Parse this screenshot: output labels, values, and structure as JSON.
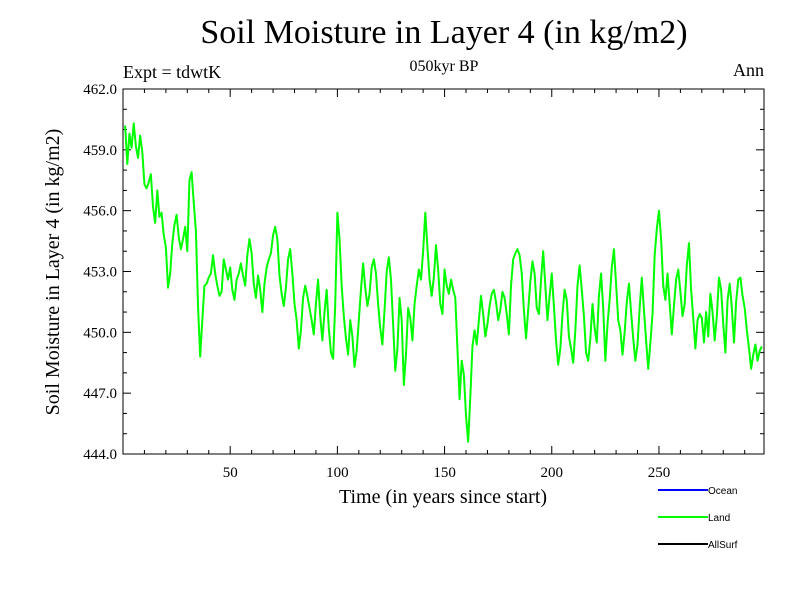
{
  "chart_data": {
    "type": "line",
    "title": "Soil Moisture in Layer 4 (in kg/m2)",
    "subtitle": "050kyr BP",
    "experiment": "Expt = tdwtK",
    "season": "Ann",
    "xlabel": "Time (in years since start)",
    "ylabel": "Soil Moisture in Layer 4 (in kg/m2)",
    "xlim": [
      0,
      299
    ],
    "ylim": [
      444.0,
      462.0
    ],
    "x_ticks": [
      50,
      100,
      150,
      200,
      250
    ],
    "y_ticks": [
      "444.0",
      "447.0",
      "450.0",
      "453.0",
      "456.0",
      "459.0",
      "462.0"
    ],
    "legend": [
      "Ocean",
      "Land",
      "AllSurf"
    ],
    "series": [
      {
        "name": "Land",
        "color": "#00ff00",
        "x_start": 1,
        "x_step": 1,
        "values": [
          460.2,
          458.3,
          459.8,
          459.1,
          460.3,
          459.2,
          458.6,
          459.7,
          458.9,
          457.3,
          457.1,
          457.4,
          457.8,
          456.2,
          455.4,
          457.0,
          455.7,
          455.9,
          454.8,
          454.2,
          452.2,
          452.9,
          454.4,
          455.3,
          455.8,
          454.7,
          454.1,
          454.6,
          455.2,
          454.0,
          457.5,
          457.9,
          456.4,
          455.0,
          451.3,
          448.8,
          450.6,
          452.3,
          452.4,
          452.7,
          452.9,
          453.8,
          452.9,
          452.3,
          451.8,
          452.0,
          453.6,
          453.1,
          452.6,
          453.2,
          452.1,
          451.6,
          452.6,
          452.9,
          453.4,
          452.8,
          452.3,
          453.8,
          454.6,
          453.9,
          452.4,
          451.7,
          452.8,
          452.1,
          451.0,
          452.4,
          453.2,
          453.6,
          453.9,
          454.8,
          455.2,
          454.6,
          452.8,
          451.9,
          451.3,
          452.2,
          453.6,
          454.1,
          452.9,
          451.4,
          450.6,
          449.2,
          450.1,
          451.7,
          452.3,
          451.8,
          451.2,
          450.6,
          449.9,
          451.4,
          452.6,
          450.8,
          449.6,
          451.0,
          452.1,
          450.2,
          449.0,
          448.7,
          451.4,
          455.9,
          454.6,
          452.3,
          450.8,
          449.7,
          448.9,
          450.6,
          449.8,
          448.3,
          449.1,
          450.6,
          452.1,
          453.4,
          452.2,
          451.3,
          451.9,
          453.2,
          453.6,
          452.9,
          451.4,
          450.2,
          449.4,
          451.1,
          453.0,
          453.7,
          452.6,
          450.4,
          448.1,
          449.2,
          451.7,
          450.6,
          447.4,
          448.9,
          451.2,
          450.7,
          449.6,
          451.4,
          452.3,
          453.1,
          452.6,
          454.0,
          455.9,
          454.2,
          452.6,
          451.8,
          452.7,
          454.3,
          453.1,
          451.4,
          450.9,
          453.1,
          452.3,
          451.9,
          452.6,
          452.1,
          451.7,
          449.2,
          446.7,
          448.6,
          447.9,
          445.9,
          444.6,
          446.8,
          449.3,
          450.1,
          449.4,
          450.6,
          451.8,
          450.9,
          449.8,
          450.4,
          451.3,
          451.9,
          452.1,
          451.5,
          450.6,
          451.1,
          452.0,
          451.7,
          450.9,
          449.9,
          452.3,
          453.6,
          453.9,
          454.1,
          453.8,
          452.9,
          451.1,
          449.7,
          451.1,
          452.5,
          453.5,
          452.9,
          451.2,
          450.9,
          452.6,
          454.0,
          452.3,
          450.6,
          451.8,
          452.9,
          451.3,
          449.6,
          448.4,
          449.2,
          450.9,
          452.1,
          451.6,
          449.8,
          449.2,
          448.5,
          450.1,
          452.3,
          453.3,
          452.1,
          450.8,
          449.0,
          448.6,
          449.7,
          451.4,
          450.2,
          449.5,
          451.8,
          452.9,
          451.2,
          448.6,
          450.4,
          451.6,
          453.2,
          454.1,
          452.4,
          450.6,
          450.1,
          448.9,
          450.0,
          451.5,
          452.4,
          451.0,
          449.7,
          448.6,
          449.4,
          451.2,
          452.7,
          451.1,
          449.6,
          448.2,
          449.5,
          450.9,
          453.8,
          455.1,
          456.0,
          454.6,
          452.3,
          451.6,
          452.9,
          451.4,
          449.9,
          451.3,
          452.6,
          453.1,
          452.0,
          450.8,
          451.4,
          453.3,
          454.4,
          452.1,
          450.7,
          449.2,
          450.6,
          450.9,
          450.7,
          449.5,
          451.0,
          449.8,
          451.9,
          451.0,
          449.6,
          450.8,
          452.7,
          452.1,
          450.4,
          449.0,
          451.6,
          452.4,
          451.2,
          449.5,
          451.5,
          452.6,
          452.7,
          451.8,
          451.2,
          450.1,
          449.2,
          448.2,
          448.9,
          449.4,
          448.6,
          449.1,
          449.3
        ]
      }
    ]
  }
}
